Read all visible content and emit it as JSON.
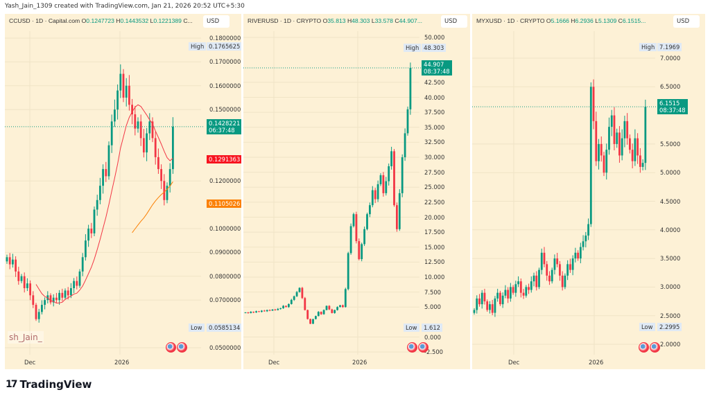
{
  "credit": "Yash_Jain_1309 created with TradingView.com, Jan 21, 2026 20:52 UTC+5:30",
  "brand": "TradingView",
  "watermark": "sh_Jain_",
  "colors": {
    "up": "#089981",
    "down": "#f23645",
    "background": "#fdf1d6",
    "ma_fast": "#f23645",
    "ma_slow": "#fb8005"
  },
  "chart_data": [
    {
      "type": "candlestick",
      "symbol": "CCUSD · 1D · Capital.com",
      "ohlc": {
        "o_label": "O",
        "o": "0.1247723",
        "h_label": "H",
        "h": "0.1443532",
        "l_label": "L",
        "l": "0.1221389",
        "c_label": "C..."
      },
      "currency": "USD",
      "ylim": [
        0.05,
        0.18
      ],
      "y_ticks": [
        "0.1800000",
        "0.1700000",
        "0.1600000",
        "0.1500000",
        "0.1200000",
        "0.1000000",
        "0.0900000",
        "0.0800000",
        "0.0700000",
        "0.0500000"
      ],
      "x_ticks": [
        "Dec",
        "2026"
      ],
      "high": {
        "label": "High",
        "value": "0.1765625"
      },
      "low": {
        "label": "Low",
        "value": "0.0585134"
      },
      "last": {
        "value": "0.1428221",
        "countdown": "06:37:48"
      },
      "ma_tags": [
        "0.1291363",
        "0.1105026"
      ],
      "closes": [
        0.088,
        0.085,
        0.087,
        0.082,
        0.078,
        0.08,
        0.075,
        0.077,
        0.072,
        0.068,
        0.062,
        0.065,
        0.068,
        0.07,
        0.072,
        0.069,
        0.071,
        0.07,
        0.073,
        0.071,
        0.074,
        0.072,
        0.075,
        0.078,
        0.076,
        0.082,
        0.088,
        0.095,
        0.1,
        0.098,
        0.108,
        0.112,
        0.118,
        0.125,
        0.122,
        0.135,
        0.145,
        0.15,
        0.158,
        0.165,
        0.155,
        0.16,
        0.152,
        0.148,
        0.142,
        0.145,
        0.138,
        0.132,
        0.14,
        0.145,
        0.138,
        0.13,
        0.125,
        0.12,
        0.112,
        0.118,
        0.125,
        0.1428
      ]
    },
    {
      "type": "candlestick",
      "symbol": "RIVERUSD · 1D · CRYPTO",
      "ohlc": {
        "o_label": "O",
        "o": "35.813",
        "h_label": "H",
        "h": "48.303",
        "l_label": "L",
        "l": "33.578",
        "c_label": "C",
        "c": "44.907..."
      },
      "currency": "USD",
      "ylim": [
        -2.5,
        50
      ],
      "y_ticks": [
        "50.000",
        "42.500",
        "40.000",
        "37.500",
        "35.000",
        "32.500",
        "30.000",
        "27.500",
        "25.000",
        "22.500",
        "20.000",
        "17.500",
        "15.000",
        "12.500",
        "10.000",
        "7.500",
        "5.000",
        "0.000",
        "-2.500"
      ],
      "x_ticks": [
        "Dec",
        "2026"
      ],
      "high": {
        "label": "High",
        "value": "48.303"
      },
      "low": {
        "label": "Low",
        "value": "1.612"
      },
      "last": {
        "value": "44.907",
        "countdown": "08:37:48"
      },
      "closes": [
        4.1,
        4.0,
        4.2,
        4.1,
        4.3,
        4.2,
        4.4,
        4.3,
        4.5,
        4.4,
        4.6,
        4.5,
        4.7,
        4.8,
        5.2,
        5.0,
        5.5,
        6.2,
        6.8,
        7.5,
        8.2,
        6.5,
        4.5,
        3.0,
        2.2,
        3.0,
        3.5,
        4.2,
        3.8,
        4.5,
        5.2,
        4.6,
        4.0,
        4.5,
        5.0,
        5.3,
        5.0,
        8.0,
        14.0,
        18.5,
        20.5,
        16.0,
        13.0,
        15.5,
        18.0,
        20.5,
        22.0,
        24.5,
        23.0,
        25.5,
        27.0,
        24.0,
        26.0,
        28.5,
        31.0,
        22.0,
        18.0,
        24.0,
        30.0,
        34.0,
        38.0,
        44.907
      ]
    },
    {
      "type": "candlestick",
      "symbol": "MYXUSD · 1D · CRYPTO",
      "ohlc": {
        "o_label": "O",
        "o": "5.1666",
        "h_label": "H",
        "h": "6.2936",
        "l_label": "L",
        "l": "5.1309",
        "c_label": "C",
        "c": "6.1515..."
      },
      "currency": "USD",
      "ylim": [
        2.0,
        7.0
      ],
      "y_ticks": [
        "7.0000",
        "6.5000",
        "5.5000",
        "5.0000",
        "4.5000",
        "4.0000",
        "3.5000",
        "3.0000",
        "2.5000",
        "2.0000"
      ],
      "x_ticks": [
        "Dec",
        "2026"
      ],
      "high": {
        "label": "High",
        "value": "7.1969"
      },
      "low": {
        "label": "Low",
        "value": "2.2995"
      },
      "last": {
        "value": "6.1515",
        "countdown": "08:37:48"
      },
      "closes": [
        2.6,
        2.8,
        2.7,
        2.9,
        2.75,
        2.6,
        2.7,
        2.55,
        2.8,
        2.9,
        2.7,
        2.85,
        2.95,
        2.8,
        3.0,
        2.9,
        3.05,
        3.1,
        2.9,
        2.85,
        3.0,
        2.95,
        3.1,
        3.2,
        3.0,
        3.3,
        3.6,
        3.4,
        3.2,
        3.1,
        3.3,
        3.5,
        3.4,
        3.2,
        3.0,
        3.2,
        3.4,
        3.3,
        3.5,
        3.6,
        3.5,
        3.7,
        3.8,
        3.9,
        4.1,
        6.5,
        5.9,
        5.2,
        5.5,
        5.3,
        5.0,
        5.4,
        5.8,
        6.0,
        5.5,
        5.7,
        5.3,
        5.6,
        5.9,
        5.6,
        5.4,
        5.2,
        5.6,
        5.3,
        5.1,
        5.17,
        6.1515
      ]
    }
  ]
}
